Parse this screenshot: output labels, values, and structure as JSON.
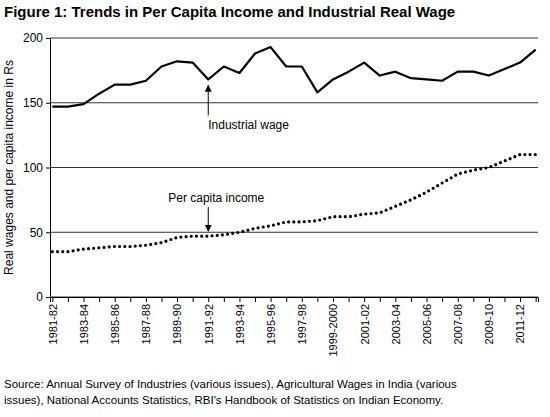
{
  "chart_data": {
    "type": "line",
    "title": "Figure 1: Trends in Per Capita Income and Industrial Real Wage",
    "y_label": "Real wages and per capita income in Rs",
    "categories": [
      "1981-82",
      null,
      "1983-84",
      null,
      "1985-86",
      null,
      "1987-88",
      null,
      "1989-90",
      null,
      "1991-92",
      null,
      "1993-94",
      null,
      "1995-96",
      null,
      "1997-98",
      null,
      "1999-2000",
      null,
      "2001-02",
      null,
      "2003-04",
      null,
      "2005-06",
      null,
      "2007-08",
      null,
      "2009-10",
      null,
      "2011-12",
      null
    ],
    "series": [
      {
        "color": "#000000",
        "line_style": "solid",
        "values": [
          147,
          147,
          149,
          157,
          164,
          164,
          167,
          178,
          182,
          181,
          168,
          178,
          173,
          188,
          193,
          178,
          178,
          158,
          168,
          174,
          181,
          171,
          174,
          169,
          168,
          167,
          174,
          174,
          171,
          176,
          181,
          191
        ]
      },
      {
        "color": "#000000",
        "line_style": "dotted",
        "values": [
          35,
          35,
          37,
          38,
          39,
          39,
          40,
          42,
          46,
          47,
          47,
          48,
          50,
          53,
          55,
          58,
          58,
          59,
          62,
          62,
          64,
          65,
          70,
          75,
          81,
          88,
          95,
          98,
          100,
          105,
          110,
          110
        ]
      }
    ],
    "annotations": [
      {
        "text": "Industrial wage",
        "x": "1991-92",
        "y": 168
      },
      {
        "text": "Per capita income",
        "x": "1991-92",
        "y": 47
      }
    ],
    "ylim": [
      0,
      200
    ],
    "yticks": [
      0,
      50,
      100,
      150,
      200
    ],
    "grid": true,
    "source": [
      "Source: Annual Survey of Industries (various issues), Agricultural Wages in India (various",
      "issues), National Accounts Statistics, RBI's Handbook of Statistics on Indian Economy."
    ]
  }
}
